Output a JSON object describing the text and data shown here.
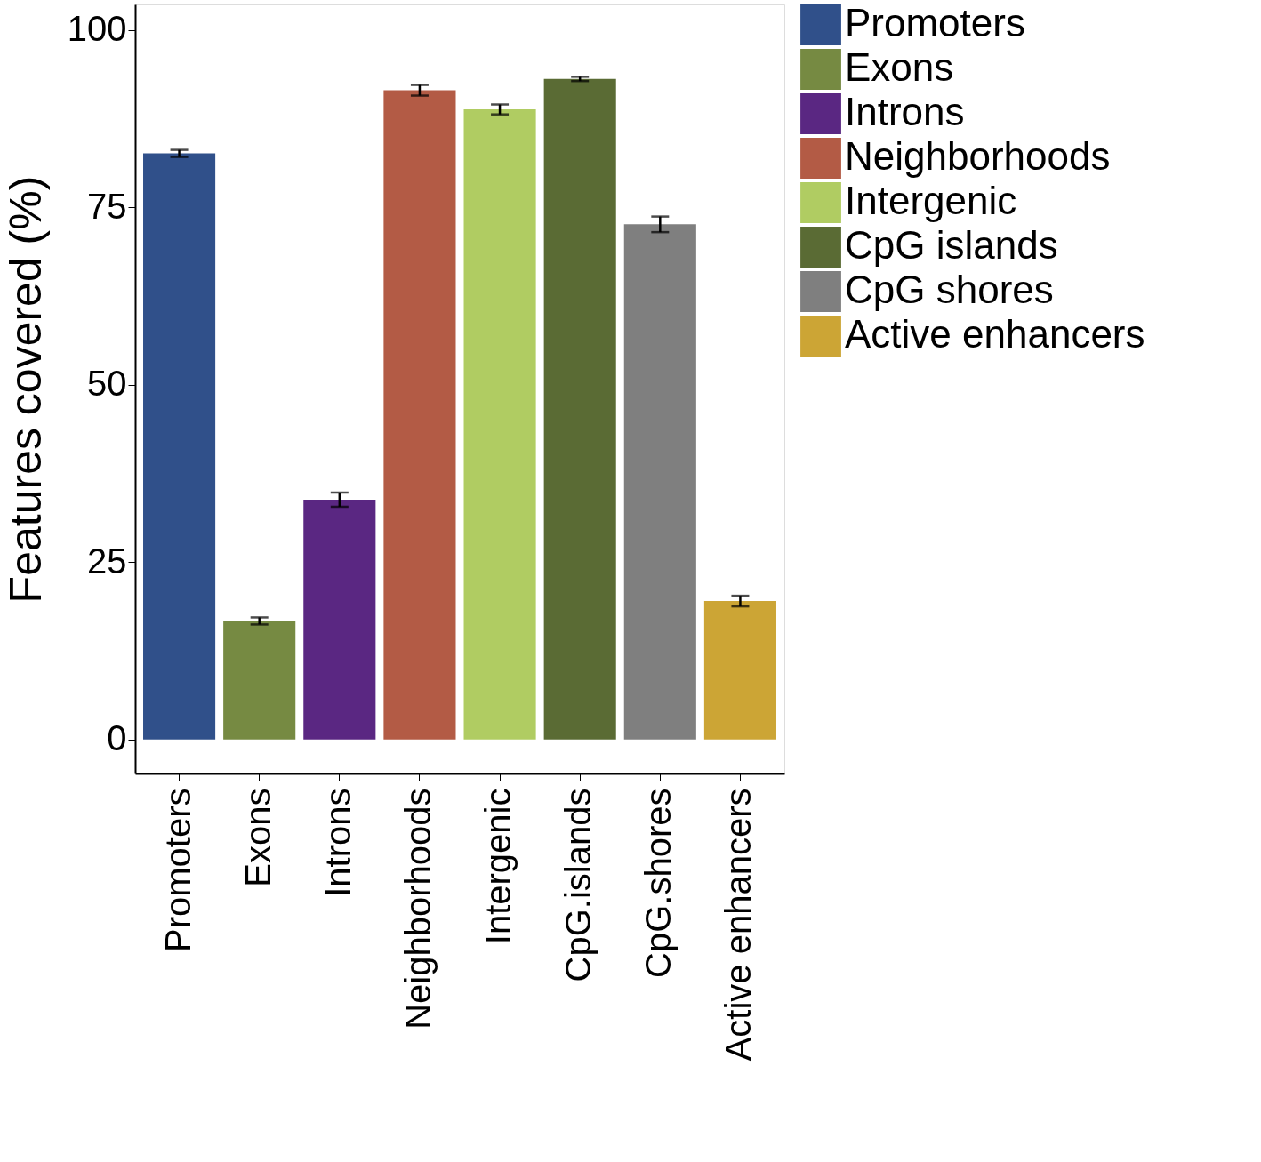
{
  "chart_data": {
    "type": "bar",
    "ylabel": "Features covered (%)",
    "categories": [
      "Promoters",
      "Exons",
      "Introns",
      "Neighborhoods",
      "Intergenic",
      "CpG.islands",
      "CpG.shores",
      "Active enhancers"
    ],
    "series": [
      {
        "name": "Promoters",
        "color": "#30508a",
        "values": [
          82.6,
          null,
          null,
          null,
          null,
          null,
          null,
          null
        ],
        "errors": [
          0.5,
          null,
          null,
          null,
          null,
          null,
          null,
          null
        ]
      },
      {
        "name": "Exons",
        "color": "#768a42",
        "values": [
          null,
          16.7,
          null,
          null,
          null,
          null,
          null,
          null
        ],
        "errors": [
          null,
          0.5,
          null,
          null,
          null,
          null,
          null,
          null
        ]
      },
      {
        "name": "Introns",
        "color": "#5a2782",
        "values": [
          null,
          null,
          33.8,
          null,
          null,
          null,
          null,
          null
        ],
        "errors": [
          null,
          null,
          1.0,
          null,
          null,
          null,
          null,
          null
        ]
      },
      {
        "name": "Neighborhoods",
        "color": "#b35b45",
        "values": [
          null,
          null,
          null,
          91.5,
          null,
          null,
          null,
          null
        ],
        "errors": [
          null,
          null,
          null,
          0.75,
          null,
          null,
          null,
          null
        ]
      },
      {
        "name": "Intergenic",
        "color": "#b0cc62",
        "values": [
          null,
          null,
          null,
          null,
          88.8,
          null,
          null,
          null
        ],
        "errors": [
          null,
          null,
          null,
          null,
          0.7,
          null,
          null,
          null
        ]
      },
      {
        "name": "CpG islands",
        "color": "#5a6b34",
        "values": [
          null,
          null,
          null,
          null,
          null,
          93.1,
          null,
          null
        ],
        "errors": [
          null,
          null,
          null,
          null,
          null,
          0.3,
          null,
          null
        ]
      },
      {
        "name": "CpG shores",
        "color": "#7f7f7f",
        "values": [
          null,
          null,
          null,
          null,
          null,
          null,
          72.6,
          null
        ],
        "errors": [
          null,
          null,
          null,
          null,
          null,
          null,
          1.1,
          null
        ]
      },
      {
        "name": "Active enhancers",
        "color": "#cca535",
        "values": [
          null,
          null,
          null,
          null,
          null,
          null,
          null,
          19.5
        ],
        "errors": [
          null,
          null,
          null,
          null,
          null,
          null,
          null,
          0.75
        ]
      }
    ],
    "ylim": [
      -4.8,
      103.6
    ],
    "yticks": [
      0,
      25,
      50,
      75,
      100
    ],
    "grid": false,
    "legend": "right"
  }
}
